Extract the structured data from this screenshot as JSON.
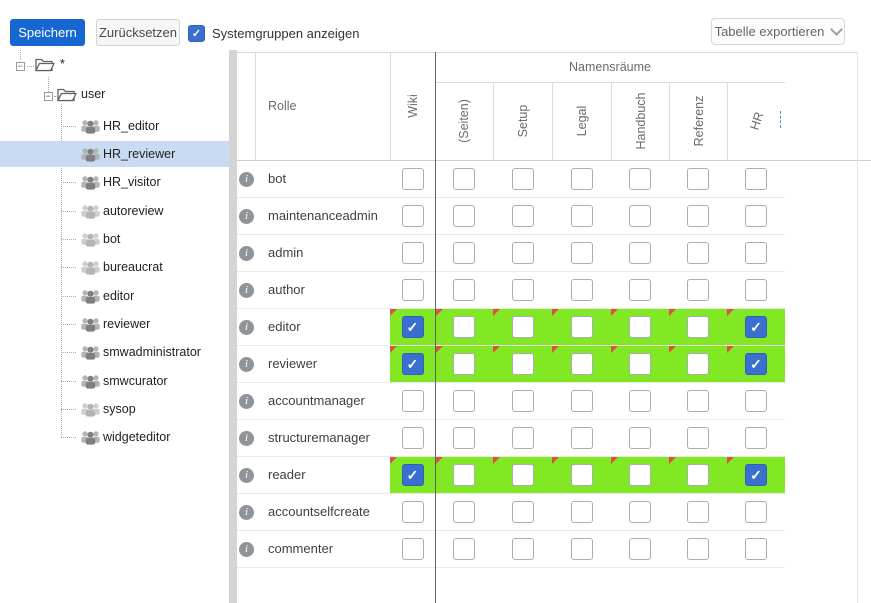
{
  "toolbar": {
    "save_label": "Speichern",
    "reset_label": "Zurücksetzen",
    "systemgroups_label": "Systemgruppen anzeigen",
    "systemgroups_checked": true,
    "export_label": "Tabelle exportieren"
  },
  "tree": {
    "root_label": "*",
    "user_folder_label": "user",
    "groups": [
      {
        "label": "HR_editor",
        "selected": false,
        "muted": false
      },
      {
        "label": "HR_reviewer",
        "selected": true,
        "muted": false
      },
      {
        "label": "HR_visitor",
        "selected": false,
        "muted": false
      },
      {
        "label": "autoreview",
        "selected": false,
        "muted": true
      },
      {
        "label": "bot",
        "selected": false,
        "muted": true
      },
      {
        "label": "bureaucrat",
        "selected": false,
        "muted": true
      },
      {
        "label": "editor",
        "selected": false,
        "muted": false
      },
      {
        "label": "reviewer",
        "selected": false,
        "muted": false
      },
      {
        "label": "smwadministrator",
        "selected": false,
        "muted": false
      },
      {
        "label": "smwcurator",
        "selected": false,
        "muted": false
      },
      {
        "label": "sysop",
        "selected": false,
        "muted": true
      },
      {
        "label": "widgeteditor",
        "selected": false,
        "muted": false
      }
    ]
  },
  "grid": {
    "role_column_label": "Rolle",
    "wiki_column_label": "Wiki",
    "namespaces_group_label": "Namensräume",
    "namespace_columns": [
      "(Seiten)",
      "Setup",
      "Legal",
      "Handbuch",
      "Referenz",
      "HR"
    ],
    "rows": [
      {
        "role": "bot",
        "highlight": false,
        "checks": [
          false,
          false,
          false,
          false,
          false,
          false,
          false
        ]
      },
      {
        "role": "maintenanceadmin",
        "highlight": false,
        "checks": [
          false,
          false,
          false,
          false,
          false,
          false,
          false
        ]
      },
      {
        "role": "admin",
        "highlight": false,
        "checks": [
          false,
          false,
          false,
          false,
          false,
          false,
          false
        ]
      },
      {
        "role": "author",
        "highlight": false,
        "checks": [
          false,
          false,
          false,
          false,
          false,
          false,
          false
        ]
      },
      {
        "role": "editor",
        "highlight": true,
        "checks": [
          true,
          false,
          false,
          false,
          false,
          false,
          true
        ]
      },
      {
        "role": "reviewer",
        "highlight": true,
        "checks": [
          true,
          false,
          false,
          false,
          false,
          false,
          true
        ]
      },
      {
        "role": "accountmanager",
        "highlight": false,
        "checks": [
          false,
          false,
          false,
          false,
          false,
          false,
          false
        ]
      },
      {
        "role": "structuremanager",
        "highlight": false,
        "checks": [
          false,
          false,
          false,
          false,
          false,
          false,
          false
        ]
      },
      {
        "role": "reader",
        "highlight": true,
        "checks": [
          true,
          false,
          false,
          false,
          false,
          false,
          true
        ]
      },
      {
        "role": "accountselfcreate",
        "highlight": false,
        "checks": [
          false,
          false,
          false,
          false,
          false,
          false,
          false
        ]
      },
      {
        "role": "commenter",
        "highlight": false,
        "checks": [
          false,
          false,
          false,
          false,
          false,
          false,
          false
        ]
      }
    ]
  },
  "colors": {
    "primary_button": "#1667d2",
    "checkbox_checked": "#3a6fd0",
    "row_highlight_green": "#82e823",
    "tree_selection": "#c9daf3",
    "dirty_marker_red": "#e0503e"
  },
  "icons": {
    "check": "✓",
    "info": "i",
    "expander_minus": "−",
    "chevron_down": "chevron-down-shape",
    "folder": "open-folder-shape",
    "group": "three-people-silhouette"
  }
}
